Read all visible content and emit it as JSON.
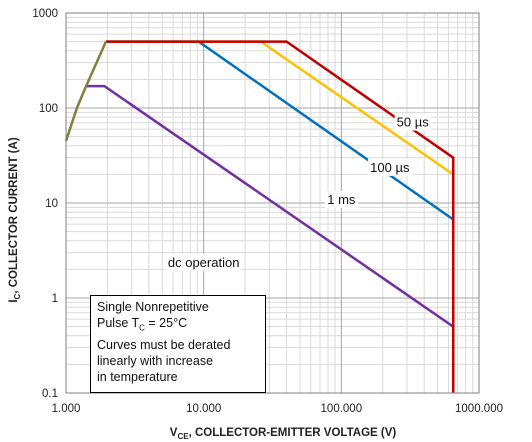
{
  "chart_data": {
    "type": "line",
    "title": "",
    "xscale": "log",
    "yscale": "log",
    "xlim": [
      1,
      1000
    ],
    "ylim": [
      0.1,
      1000
    ],
    "grid": true,
    "xlabel": {
      "symbol": "V",
      "subscript": "CE",
      "text": ", COLLECTOR-EMITTER VOLTAGE (V)"
    },
    "ylabel": {
      "symbol": "I",
      "subscript": "C",
      "text": ", COLLECTOR CURRENT (A)"
    },
    "xticks": [
      {
        "value": 1,
        "label": "1.000"
      },
      {
        "value": 10,
        "label": "10.000"
      },
      {
        "value": 100,
        "label": "100.000"
      },
      {
        "value": 1000,
        "label": "1000.000"
      }
    ],
    "yticks": [
      {
        "value": 0.1,
        "label": "0.1"
      },
      {
        "value": 1,
        "label": "1"
      },
      {
        "value": 10,
        "label": "10"
      },
      {
        "value": 100,
        "label": "100"
      },
      {
        "value": 1000,
        "label": "1000"
      }
    ],
    "series": [
      {
        "label": "dc operation",
        "color": "#7030a0",
        "points": [
          [
            1.4,
            170
          ],
          [
            1.9,
            170
          ],
          [
            650,
            0.5
          ]
        ]
      },
      {
        "label": "1 ms",
        "color": "#0070c0",
        "points": [
          [
            1.95,
            500
          ],
          [
            9.2,
            500
          ],
          [
            650,
            6.7
          ]
        ]
      },
      {
        "label": "100 µs",
        "color": "#ffc000",
        "points": [
          [
            1.95,
            500
          ],
          [
            26,
            500
          ],
          [
            650,
            20
          ]
        ]
      },
      {
        "label": "50 µs",
        "color": "#c00000",
        "points": [
          [
            1.95,
            500
          ],
          [
            40,
            500
          ],
          [
            650,
            30
          ],
          [
            650,
            0.1
          ]
        ]
      },
      {
        "label": "",
        "color": "#7f7f3f",
        "points": [
          [
            1,
            45
          ],
          [
            1.2,
            100
          ],
          [
            1.4,
            170
          ],
          [
            1.95,
            500
          ]
        ]
      }
    ],
    "annotations": [
      {
        "text": "50 µs",
        "x": 330,
        "y": 72
      },
      {
        "text": "100 µs",
        "x": 225,
        "y": 24
      },
      {
        "text": "1 ms",
        "x": 100,
        "y": 11
      },
      {
        "text": "dc operation",
        "x": 10,
        "y": 2.4
      }
    ],
    "note": [
      "Single Nonrepetitive",
      "Pulse T",
      "C",
      " = 25°C",
      "Curves must be derated",
      "linearly with increase",
      "in temperature"
    ]
  }
}
